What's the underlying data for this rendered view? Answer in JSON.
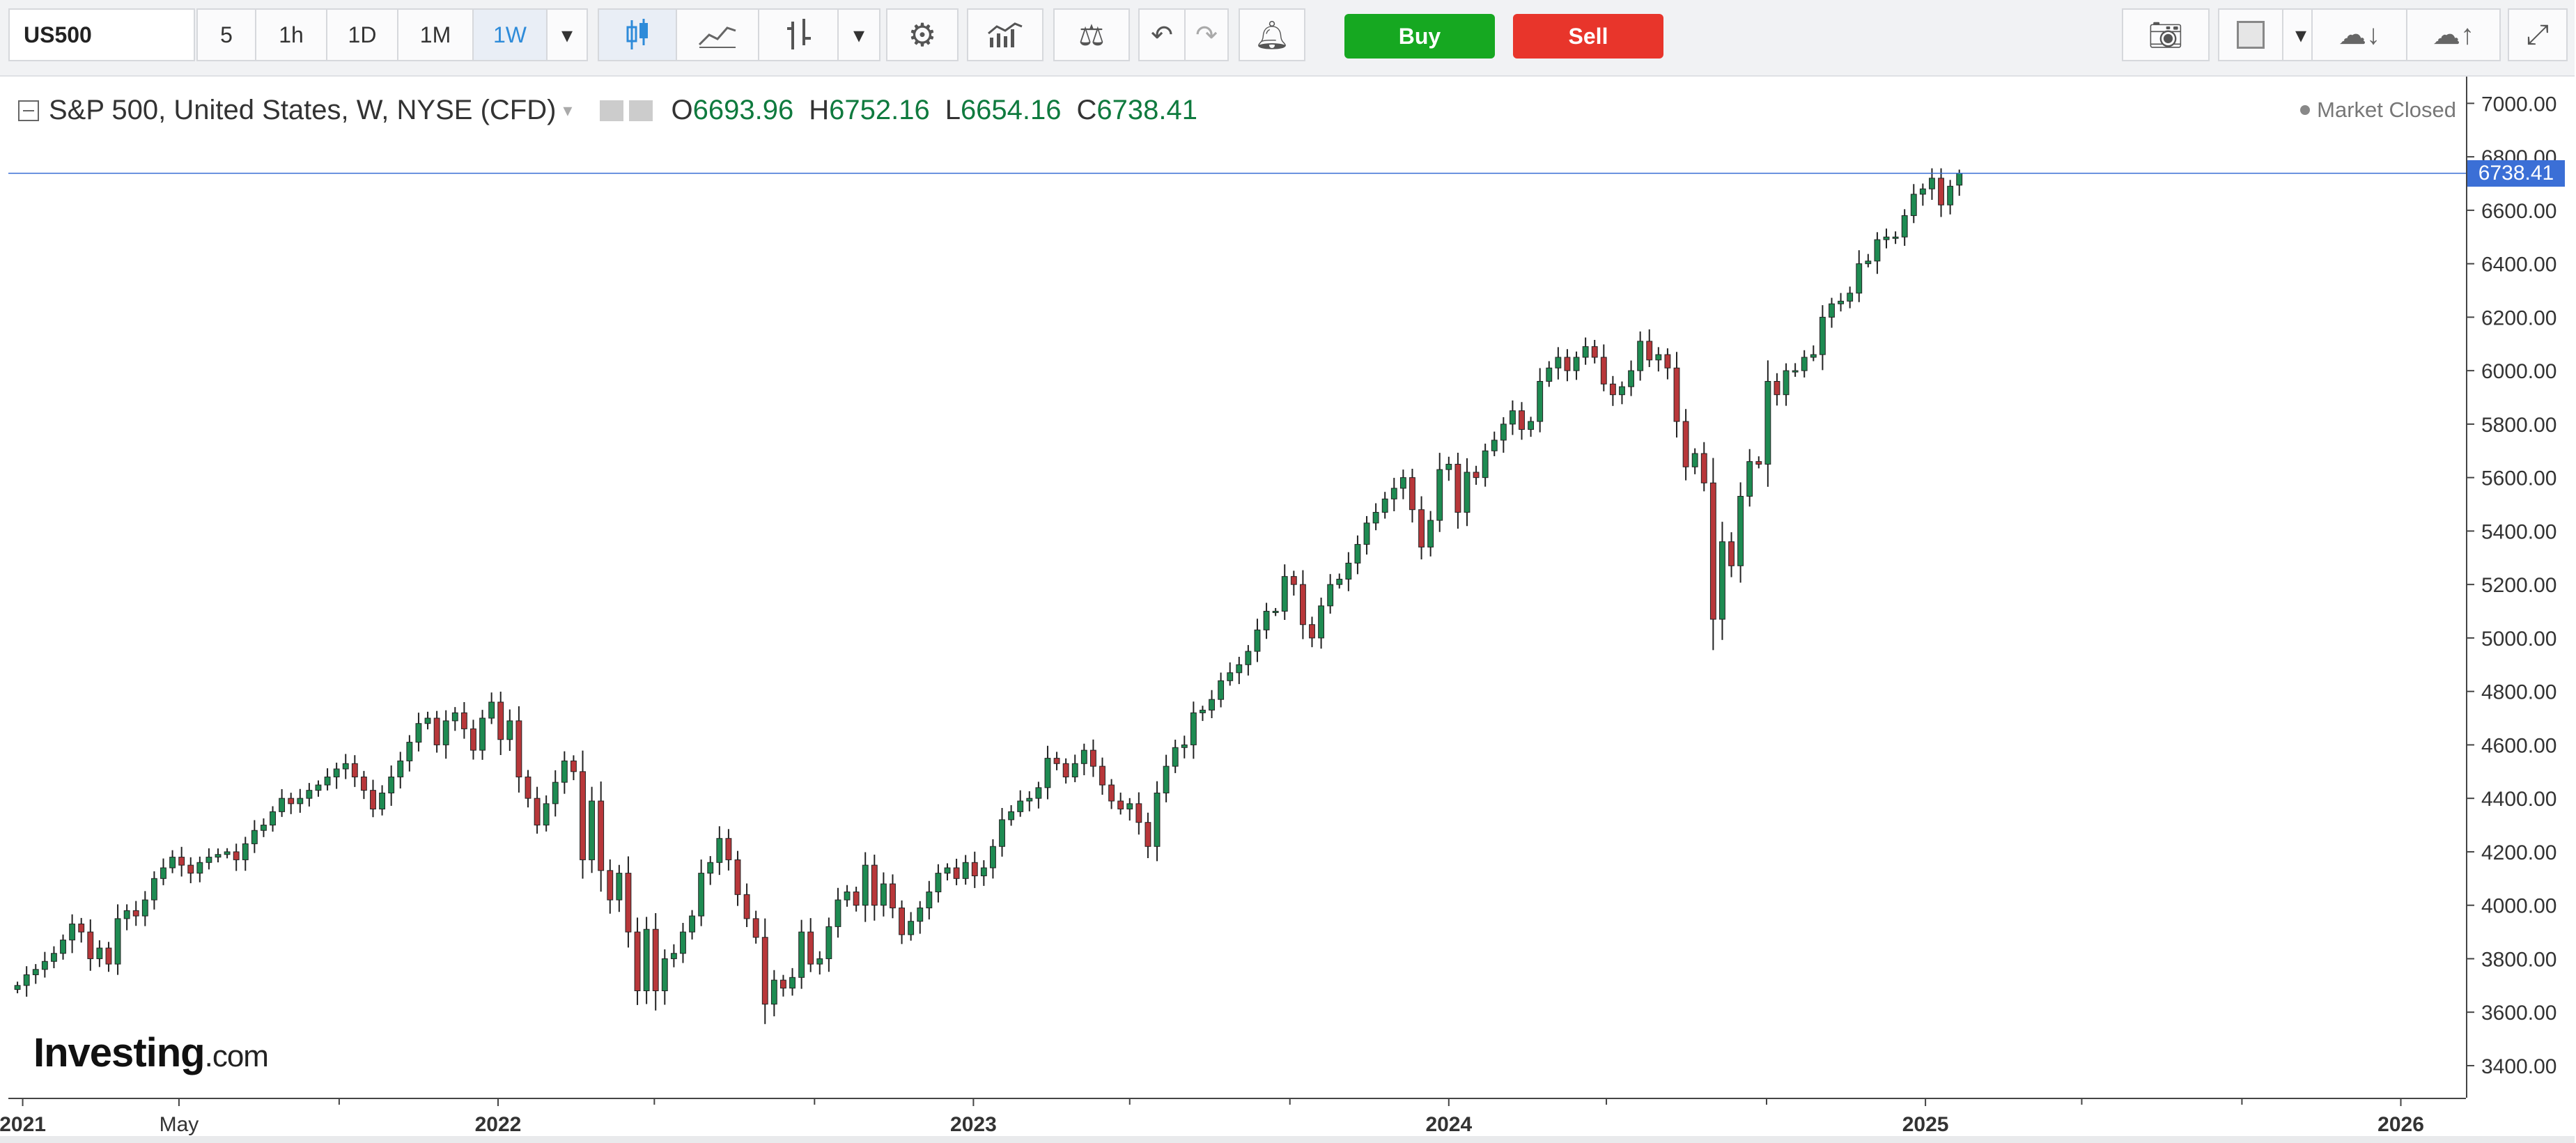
{
  "toolbar": {
    "symbol": "US500",
    "intervals": [
      "5",
      "1h",
      "1D",
      "1M",
      "1W"
    ],
    "active_interval": "1W",
    "buy_label": "Buy",
    "sell_label": "Sell"
  },
  "legend": {
    "title": "S&P 500, United States, W, NYSE (CFD)",
    "open_key": "O",
    "open": "6693.96",
    "high_key": "H",
    "high": "6752.16",
    "low_key": "L",
    "low": "6654.16",
    "close_key": "C",
    "close": "6738.41"
  },
  "market_status": "Market Closed",
  "last_price_tag": "6738.41",
  "watermark": {
    "brand": "Investing",
    "suffix": ".com"
  },
  "colors": {
    "up": "#1e8b52",
    "down": "#b8373a",
    "price_line": "#3b6fd6",
    "buy": "#16a821",
    "sell": "#e8352b"
  },
  "chart_data": {
    "type": "candlestick",
    "symbol": "US500",
    "interval": "W",
    "y_ticks": [
      3400,
      3600,
      3800,
      4000,
      4200,
      4400,
      4600,
      4800,
      5000,
      5200,
      5400,
      5600,
      5800,
      6000,
      6200,
      6400,
      6600,
      6800,
      7000
    ],
    "y_tick_labels": [
      "3400.00",
      "3600.00",
      "3800.00",
      "4000.00",
      "4200.00",
      "4400.00",
      "4600.00",
      "4800.00",
      "5000.00",
      "5200.00",
      "5400.00",
      "5600.00",
      "5800.00",
      "6000.00",
      "6200.00",
      "6400.00",
      "6600.00",
      "6800.00",
      "7000.00"
    ],
    "x_ticks": [
      "2021",
      "May",
      "2022",
      "2023",
      "2024",
      "2025",
      "2026"
    ],
    "ylim": [
      3280,
      7100
    ],
    "x_range": [
      "2020-12-21",
      "2026-02-20"
    ],
    "last_close": 6738.41,
    "closes": [
      3700,
      3740,
      3760,
      3790,
      3820,
      3870,
      3930,
      3900,
      3800,
      3840,
      3780,
      3950,
      3980,
      3960,
      4020,
      4100,
      4140,
      4180,
      4150,
      4120,
      4160,
      4180,
      4190,
      4200,
      4170,
      4230,
      4280,
      4300,
      4350,
      4400,
      4380,
      4400,
      4430,
      4450,
      4480,
      4510,
      4530,
      4480,
      4430,
      4360,
      4420,
      4480,
      4540,
      4610,
      4680,
      4700,
      4600,
      4690,
      4720,
      4660,
      4580,
      4700,
      4760,
      4620,
      4690,
      4480,
      4400,
      4300,
      4380,
      4460,
      4540,
      4500,
      4170,
      4390,
      4130,
      4020,
      4120,
      3900,
      3680,
      3910,
      3680,
      3800,
      3820,
      3900,
      3960,
      4120,
      4160,
      4250,
      4170,
      4040,
      3950,
      3880,
      3630,
      3720,
      3690,
      3730,
      3900,
      3780,
      3800,
      3920,
      4020,
      4050,
      4000,
      4150,
      4000,
      4080,
      3990,
      3890,
      3940,
      3990,
      4050,
      4120,
      4140,
      4100,
      4160,
      4110,
      4140,
      4220,
      4320,
      4350,
      4390,
      4400,
      4440,
      4550,
      4530,
      4480,
      4530,
      4580,
      4520,
      4450,
      4390,
      4360,
      4380,
      4310,
      4220,
      4420,
      4520,
      4590,
      4600,
      4720,
      4730,
      4770,
      4840,
      4870,
      4900,
      4950,
      5030,
      5100,
      5100,
      5230,
      5200,
      5050,
      5000,
      5120,
      5200,
      5220,
      5280,
      5350,
      5430,
      5470,
      5520,
      5560,
      5600,
      5480,
      5340,
      5440,
      5630,
      5650,
      5470,
      5620,
      5600,
      5700,
      5740,
      5800,
      5850,
      5780,
      5810,
      5960,
      6010,
      6050,
      6000,
      6050,
      6090,
      6050,
      5950,
      5910,
      5940,
      6000,
      6110,
      6040,
      6060,
      6010,
      5810,
      5640,
      5690,
      5580,
      5070,
      5360,
      5270,
      5530,
      5660,
      5650,
      5960,
      5910,
      6000,
      6000,
      6050,
      6060,
      6200,
      6250,
      6260,
      6290,
      6400,
      6410,
      6490,
      6500,
      6500,
      6580,
      6660,
      6680,
      6720,
      6620,
      6690,
      6740
    ]
  }
}
